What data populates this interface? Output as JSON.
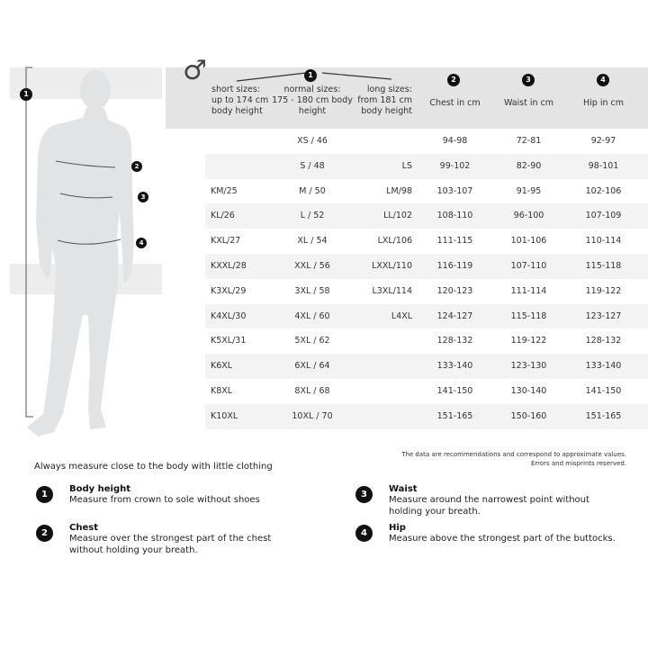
{
  "header": {
    "gender_symbol": "♂",
    "short": "short sizes:\nup to 174 cm\nbody height",
    "normal": "normal sizes:\n175 - 180 cm body\nheight",
    "long": "long sizes:\nfrom 181 cm\nbody height",
    "chest": "Chest in cm",
    "waist": "Waist in cm",
    "hip": "Hip in cm",
    "markers": [
      "1",
      "2",
      "3",
      "4"
    ]
  },
  "rows": [
    [
      "",
      "XS / 46",
      "",
      "94-98",
      "72-81",
      "92-97"
    ],
    [
      "",
      "S / 48",
      "LS",
      "99-102",
      "82-90",
      "98-101"
    ],
    [
      "KM/25",
      "M / 50",
      "LM/98",
      "103-107",
      "91-95",
      "102-106"
    ],
    [
      "KL/26",
      "L / 52",
      "LL/102",
      "108-110",
      "96-100",
      "107-109"
    ],
    [
      "KXL/27",
      "XL / 54",
      "LXL/106",
      "111-115",
      "101-106",
      "110-114"
    ],
    [
      "KXXL/28",
      "XXL / 56",
      "LXXL/110",
      "116-119",
      "107-110",
      "115-118"
    ],
    [
      "K3XL/29",
      "3XL / 58",
      "L3XL/114",
      "120-123",
      "111-114",
      "119-122"
    ],
    [
      "K4XL/30",
      "4XL / 60",
      "L4XL",
      "124-127",
      "115-118",
      "123-127"
    ],
    [
      "K5XL/31",
      "5XL / 62",
      "",
      "128-132",
      "119-122",
      "128-132"
    ],
    [
      "K6XL",
      "6XL / 64",
      "",
      "133-140",
      "123-130",
      "133-140"
    ],
    [
      "K8XL",
      "8XL / 68",
      "",
      "141-150",
      "130-140",
      "141-150"
    ],
    [
      "K10XL",
      "10XL / 70",
      "",
      "151-165",
      "150-160",
      "151-165"
    ]
  ],
  "note": "The data are recommendations and correspond to approximate values.\nErrors and misprints reserved.",
  "intro": "Always measure close to the body with little clothing",
  "legend": [
    {
      "num": "1",
      "title": "Body height",
      "desc": "Measure from crown to sole without shoes"
    },
    {
      "num": "2",
      "title": "Chest",
      "desc": "Measure over the strongest part of the chest without holding your breath."
    },
    {
      "num": "3",
      "title": "Waist",
      "desc": "Measure around the narrowest point without holding your breath."
    },
    {
      "num": "4",
      "title": "Hip",
      "desc": "Measure above the strongest part of the buttocks."
    }
  ],
  "colors": {
    "header_bg": "#e4e4e4",
    "row_alt": "#f3f3f3",
    "marker": "#111111",
    "silhouette": "#e2e3e4"
  }
}
